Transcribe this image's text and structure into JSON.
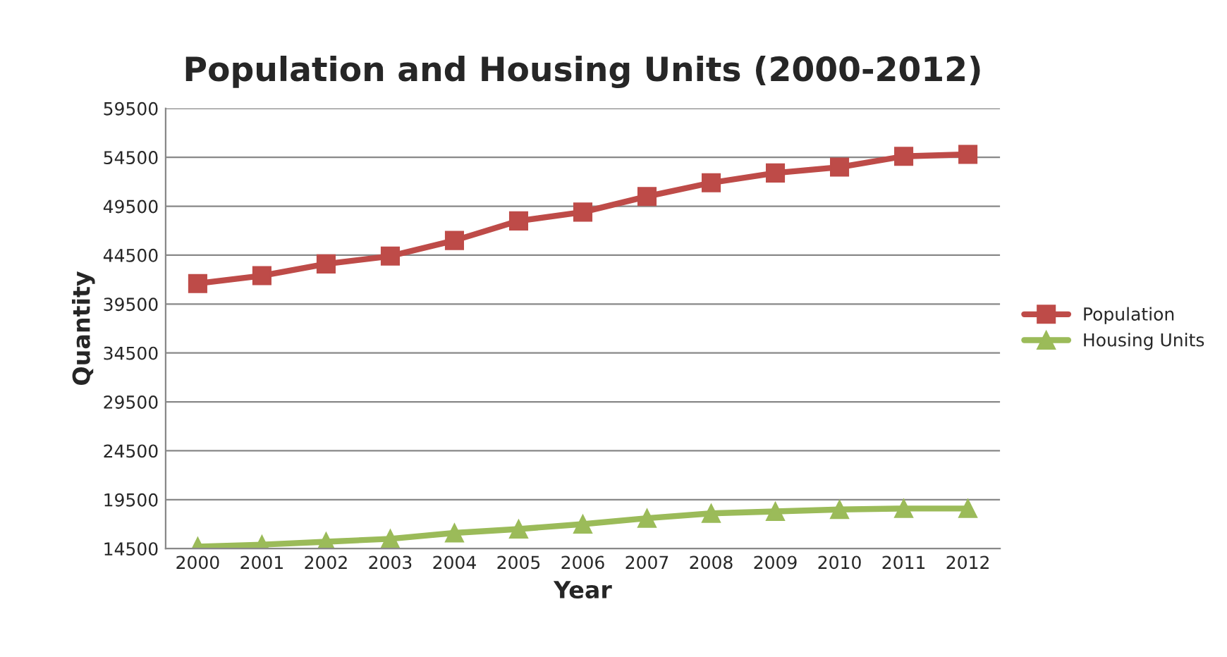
{
  "chart_data": {
    "type": "line",
    "title": "Population and Housing Units (2000-2012)",
    "xlabel": "Year",
    "ylabel": "Quantity",
    "categories": [
      "2000",
      "2001",
      "2002",
      "2003",
      "2004",
      "2005",
      "2006",
      "2007",
      "2008",
      "2009",
      "2010",
      "2011",
      "2012"
    ],
    "series": [
      {
        "name": "Population",
        "color": "#be4b48",
        "marker": "square",
        "values": [
          41600,
          42400,
          43600,
          44400,
          46000,
          48000,
          48900,
          50500,
          51900,
          52900,
          53500,
          54600,
          54800
        ]
      },
      {
        "name": "Housing Units",
        "color": "#9bbb59",
        "marker": "triangle",
        "values": [
          14700,
          14900,
          15200,
          15500,
          16100,
          16500,
          17000,
          17600,
          18100,
          18300,
          18500,
          18600,
          18600
        ]
      }
    ],
    "ylim": [
      14500,
      59500
    ],
    "yticks": [
      14500,
      19500,
      24500,
      29500,
      34500,
      39500,
      44500,
      49500,
      54500,
      59500
    ],
    "grid": "y",
    "legend": "right",
    "line_style": "solid"
  }
}
